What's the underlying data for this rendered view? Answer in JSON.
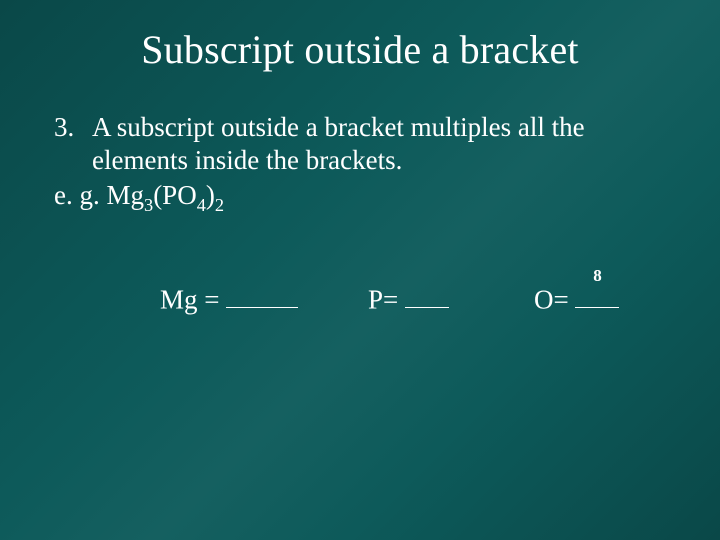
{
  "slide": {
    "background_color": "#0d5a5a",
    "text_color": "#ffffff",
    "font_family": "Times New Roman",
    "title": "Subscript outside a bracket",
    "title_fontsize": 40,
    "body_fontsize": 27,
    "item_number": "3.",
    "rule_line1": "A subscript outside a bracket multiples all the",
    "rule_line2": "elements inside the brackets.",
    "example_prefix": "e. g. ",
    "formula": {
      "pre": "Mg",
      "sub1": "3",
      "mid": "(PO",
      "sub2": "4",
      "close": ")",
      "sub3": "2"
    },
    "answers": {
      "mg_label": "Mg = ",
      "p_label": "P= ",
      "o_label": "O= ",
      "o_value": "8"
    }
  }
}
